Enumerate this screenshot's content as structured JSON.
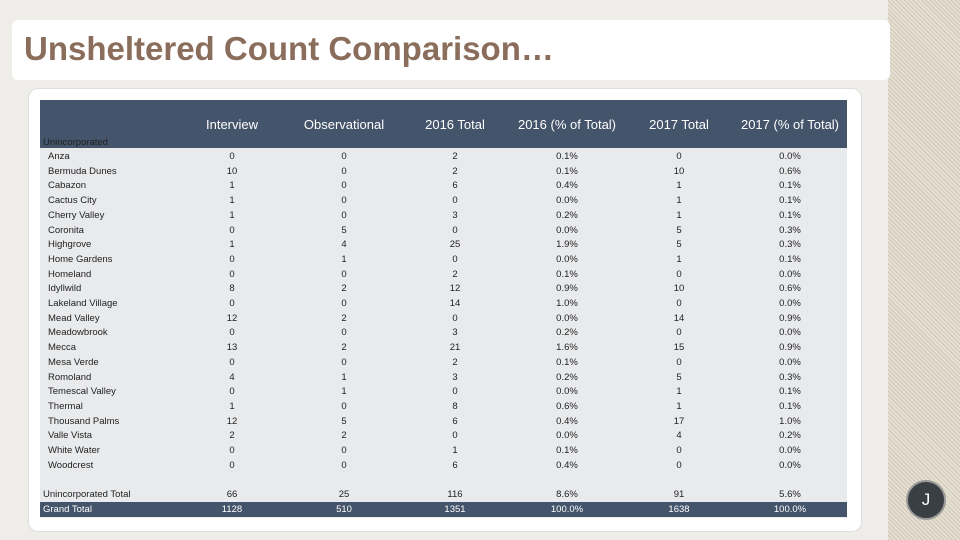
{
  "header": {
    "title": "Unsheltered Count Comparison…"
  },
  "table": {
    "columns": [
      "Interview",
      "Observational",
      "2016 Total",
      "2016 (% of Total)",
      "2017 Total",
      "2017 (% of Total)"
    ],
    "section": "Unincorporated",
    "rows": [
      [
        "Anza",
        "0",
        "0",
        "2",
        "0.1%",
        "0",
        "0.0%"
      ],
      [
        "Bermuda Dunes",
        "10",
        "0",
        "2",
        "0.1%",
        "10",
        "0.6%"
      ],
      [
        "Cabazon",
        "1",
        "0",
        "6",
        "0.4%",
        "1",
        "0.1%"
      ],
      [
        "Cactus City",
        "1",
        "0",
        "0",
        "0.0%",
        "1",
        "0.1%"
      ],
      [
        "Cherry Valley",
        "1",
        "0",
        "3",
        "0.2%",
        "1",
        "0.1%"
      ],
      [
        "Coronita",
        "0",
        "5",
        "0",
        "0.0%",
        "5",
        "0.3%"
      ],
      [
        "Highgrove",
        "1",
        "4",
        "25",
        "1.9%",
        "5",
        "0.3%"
      ],
      [
        "Home Gardens",
        "0",
        "1",
        "0",
        "0.0%",
        "1",
        "0.1%"
      ],
      [
        "Homeland",
        "0",
        "0",
        "2",
        "0.1%",
        "0",
        "0.0%"
      ],
      [
        "Idyllwild",
        "8",
        "2",
        "12",
        "0.9%",
        "10",
        "0.6%"
      ],
      [
        "Lakeland Village",
        "0",
        "0",
        "14",
        "1.0%",
        "0",
        "0.0%"
      ],
      [
        "Mead Valley",
        "12",
        "2",
        "0",
        "0.0%",
        "14",
        "0.9%"
      ],
      [
        "Meadowbrook",
        "0",
        "0",
        "3",
        "0.2%",
        "0",
        "0.0%"
      ],
      [
        "Mecca",
        "13",
        "2",
        "21",
        "1.6%",
        "15",
        "0.9%"
      ],
      [
        "Mesa Verde",
        "0",
        "0",
        "2",
        "0.1%",
        "0",
        "0.0%"
      ],
      [
        "Romoland",
        "4",
        "1",
        "3",
        "0.2%",
        "5",
        "0.3%"
      ],
      [
        "Temescal Valley",
        "0",
        "1",
        "0",
        "0.0%",
        "1",
        "0.1%"
      ],
      [
        "Thermal",
        "1",
        "0",
        "8",
        "0.6%",
        "1",
        "0.1%"
      ],
      [
        "Thousand Palms",
        "12",
        "5",
        "6",
        "0.4%",
        "17",
        "1.0%"
      ],
      [
        "Valle Vista",
        "2",
        "2",
        "0",
        "0.0%",
        "4",
        "0.2%"
      ],
      [
        "White Water",
        "0",
        "0",
        "1",
        "0.1%",
        "0",
        "0.0%"
      ],
      [
        "Woodcrest",
        "0",
        "0",
        "6",
        "0.4%",
        "0",
        "0.0%"
      ]
    ],
    "subtotal": [
      "Unincorporated Total",
      "66",
      "25",
      "116",
      "8.6%",
      "91",
      "5.6%"
    ],
    "total": [
      "Grand Total",
      "1128",
      "510",
      "1351",
      "100.0%",
      "1638",
      "100.0%"
    ]
  },
  "badge": "J"
}
